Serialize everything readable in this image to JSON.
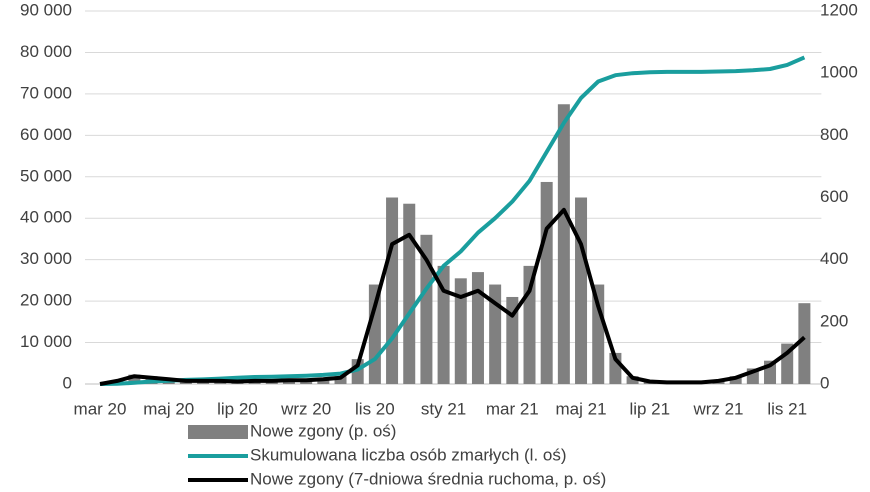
{
  "chart_data": {
    "type": "bar-line",
    "categories": [
      "mar 20",
      null,
      null,
      null,
      "maj 20",
      null,
      null,
      null,
      "lip 20",
      null,
      null,
      null,
      "wrz 20",
      null,
      null,
      null,
      "lis 20",
      null,
      null,
      null,
      "sty 21",
      null,
      null,
      null,
      "mar 21",
      null,
      null,
      null,
      "maj 21",
      null,
      null,
      null,
      "lip 21",
      null,
      null,
      null,
      "wrz 21",
      null,
      null,
      null,
      "lis 21",
      null
    ],
    "series": [
      {
        "name": "Nowe zgony (p. oś)",
        "type": "bar",
        "axis": "y2",
        "color": "#808080",
        "values": [
          0,
          12,
          30,
          25,
          18,
          12,
          12,
          12,
          9,
          12,
          12,
          14,
          14,
          18,
          25,
          80,
          320,
          600,
          580,
          480,
          380,
          340,
          360,
          320,
          280,
          380,
          650,
          900,
          600,
          320,
          100,
          25,
          10,
          6,
          6,
          6,
          12,
          25,
          50,
          75,
          130,
          260
        ]
      },
      {
        "name": "Skumulowana liczba osób zmarłych (l. oś)",
        "type": "line",
        "axis": "y",
        "color": "#1a9e9e",
        "values": [
          0,
          50,
          300,
          600,
          800,
          1000,
          1100,
          1300,
          1500,
          1700,
          1750,
          1850,
          2000,
          2200,
          2500,
          3500,
          6000,
          11000,
          17000,
          23000,
          28500,
          32000,
          36500,
          40000,
          44000,
          49000,
          56000,
          63000,
          69000,
          73000,
          74500,
          75000,
          75200,
          75300,
          75300,
          75300,
          75400,
          75500,
          75700,
          76000,
          77000,
          78800
        ]
      },
      {
        "name": "Nowe zgony (7-dniowa średnia ruchoma, p. oś)",
        "type": "line",
        "axis": "y2",
        "color": "#000000",
        "values": [
          0,
          10,
          25,
          20,
          15,
          10,
          10,
          10,
          8,
          10,
          10,
          12,
          12,
          15,
          20,
          60,
          250,
          450,
          480,
          400,
          300,
          280,
          300,
          260,
          220,
          300,
          500,
          560,
          450,
          250,
          80,
          20,
          8,
          5,
          5,
          5,
          10,
          20,
          40,
          60,
          100,
          150
        ]
      }
    ],
    "ylim": [
      0,
      90000
    ],
    "yticks": [
      0,
      {
        "value": 10000,
        "label": "10 000"
      },
      {
        "value": 20000,
        "label": "20 000"
      },
      {
        "value": 30000,
        "label": "30 000"
      },
      {
        "value": 40000,
        "label": "40 000"
      },
      {
        "value": 50000,
        "label": "50 000"
      },
      {
        "value": 60000,
        "label": "60 000"
      },
      {
        "value": 70000,
        "label": "70 000"
      },
      {
        "value": 80000,
        "label": "80 000"
      },
      {
        "value": 90000,
        "label": "90 000"
      }
    ],
    "y2lim": [
      0,
      1200
    ],
    "y2ticks": [
      0,
      200,
      400,
      600,
      800,
      1000,
      1200
    ],
    "grid": true
  }
}
